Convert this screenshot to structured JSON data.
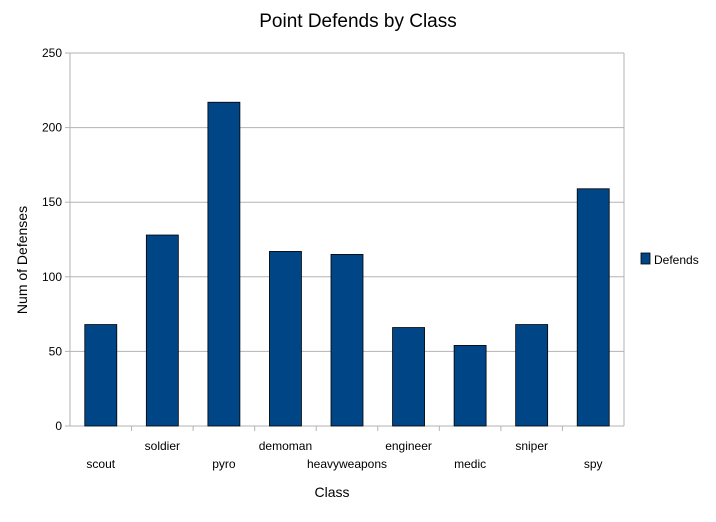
{
  "chart_data": {
    "type": "bar",
    "title": "Point Defends by Class",
    "xlabel": "Class",
    "ylabel": "Num of Defenses",
    "categories": [
      "scout",
      "soldier",
      "pyro",
      "demoman",
      "heavyweapons",
      "engineer",
      "medic",
      "sniper",
      "spy"
    ],
    "series": [
      {
        "name": "Defends",
        "values": [
          68,
          128,
          217,
          117,
          115,
          66,
          54,
          68,
          159
        ]
      }
    ],
    "ylim": [
      0,
      250
    ],
    "yticks": [
      0,
      50,
      100,
      150,
      200,
      250
    ],
    "grid": true,
    "legend": "right",
    "colors": {
      "bar": "#004586",
      "bar_edge": "#000000",
      "grid": "#b3b3b3",
      "axis": "#b3b3b3"
    }
  }
}
